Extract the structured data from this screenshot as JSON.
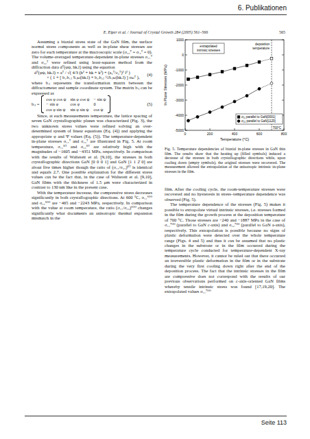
{
  "header": {
    "section": "6. Publikationen",
    "running_head": "E. Eiper et al. / Journal of Crystal Growth 284 (2005) 561–566",
    "page": "565"
  },
  "left_column": [
    {
      "type": "paragraph",
      "text": "Assuming a biaxial stress state of the GaN film, the surface normal stress components as well as in-plane shear stresses are zero for each temperature at the macroscopic scale (σ₃₃ᵀ = σᵢ₃ᵀ = 0). The volume-averaged temperature-dependent in-plane stresses σ₁₁ᵀ and σ₂₂ᵀ were refined using least-squares method from the diffraction data dᵀ(φψ, hk.l) using the equation"
    },
    {
      "type": "equation",
      "lines": [
        "dᵀ(φψ, hk.l) = aᵀ / √( 4/3 (h² + hk + k²) + (a₀ᵀ/c₀ᵀ)² l² )",
        "× ( 1 + [ b₁ᵢb₁ⱼ Sᵢⱼₖₗ(hk.l) + b₂ᵢb₂ⱼ ½Sᵢⱼₖₗ(hk.l) ] σₖₗᵀ ),"
      ],
      "number": "(4)"
    },
    {
      "type": "continuation",
      "text": "where bᵢⱼ represents the transformation matrix between the diffractometer and sample coordinate system. The matrix bᵢⱼ can be expressed as"
    },
    {
      "type": "matrix",
      "lhs": "bᵢⱼ =",
      "rows": [
        [
          "cos φ cos ψ",
          "sin φ cos ψ",
          "− sin ψ"
        ],
        [
          "− sin φ",
          "cos φ",
          "0"
        ],
        [
          "cos φ sin ψ",
          "sin φ sin ψ",
          "cos ψ"
        ]
      ],
      "number": "(5)"
    },
    {
      "type": "paragraph",
      "text": "Since, at each measurements temperature, the lattice spacing of seven GaN crystallographic planes was characterized (Fig. 3), the two unknown stress values were refined solving an over-determined system of linear equations (Eq. (4)) and applying the appropriate φ and Ψ values (Eq. (5)). The temperature-dependent in-plane stresses σ₁₁ᵀ and σ₂₂ᵀ are illustrated in Fig. 5. At room temperature, σ₁₁ᴿᵀ and σ₂₂ᴿᵀ are relatively high with the magnitudes of −1605 and −4351 MPa, respectively. In comparison with the results of Waltereit et al. [9,10], the stresses in both crystallographic directions GaN [0 0 0 1] and GaN [1 1 2̄ 0] are about five times higher though the ratio of (σ₁₁/σ₂₂)ᴿᵀ is identical and equals 2.7. One possible explanation for the different stress values can be the fact that, in the case of Waltereit et al. [9,10], GaN films with the thickness of 1.5 μm were characterized in contrast to 130 nm like in the present case."
    },
    {
      "type": "paragraph",
      "text": "With the temperature increase, the compressive stress decreases significantly in both crystallographic directions. At 600 °C, σ₁₁⁶⁰⁰ and σ₂₂⁶⁰⁰ are −465 and −2243 MPa, respectively. In comparison with the value at room temperature, the ratio (σ₁₁/σ₂₂)⁶⁰⁰ changes significantly what documents an anisotropic thermal expansion mismatch in the"
    }
  ],
  "chart_data": {
    "type": "line",
    "xlabel": "Temperature (°C)",
    "ylabel": "In Plane Stresses (MPa)",
    "xlim": [
      0,
      800
    ],
    "xticks": [
      0,
      200,
      400,
      600,
      800
    ],
    "ylim": [
      -5000,
      1000
    ],
    "yticks": [
      -5000,
      -4000,
      -3000,
      -2000,
      -1000,
      0,
      1000
    ],
    "x": [
      25,
      100,
      200,
      300,
      400,
      500,
      600
    ],
    "series": [
      {
        "name": "σ₁₁ parallel to GaN[0001]",
        "color": "#000000",
        "marker": "square",
        "values": [
          -1605,
          -1480,
          -1300,
          -1120,
          -900,
          -700,
          -465
        ],
        "values_cooling": [
          -1620,
          -1500,
          -1320,
          -1100,
          -920,
          -690,
          -480
        ],
        "extrapolated": {
          "x": 700,
          "value": -240
        }
      },
      {
        "name": "σ₂₂ parallel to GaN[112̄0]",
        "color": "#000000",
        "marker": "circle",
        "values": [
          -4351,
          -4100,
          -3800,
          -3450,
          -3100,
          -2700,
          -2243
        ],
        "values_cooling": [
          -4380,
          -4120,
          -3780,
          -3480,
          -3080,
          -2720,
          -2260
        ],
        "extrapolated": {
          "x": 700,
          "value": -1887
        }
      }
    ],
    "legend": "lower right",
    "vline_x": 700,
    "annotations": {
      "extrapolated": [
        "extrapolated",
        "intrinsic stresses"
      ],
      "deposition": [
        "deposition",
        "temperature"
      ],
      "vline_label": "700°C"
    }
  },
  "caption": {
    "label": "Fig. 5.",
    "text": "Temperature dependencies of biaxial in-plane stresses in GaN thin film. The results show that the heating up (filled symbols) induced a decrease of the stresses in both crystallographic directions while, upon cooling down (empty symbols), the original stresses were recovered. The measurement allowed the extrapolation of the anisotropic intrinsic in-plane stresses in the film."
  },
  "right_column": [
    {
      "type": "continuation",
      "text": "film. After the cooling cycle, the room-temperature stresses were recovered and no hysteresis in stress–temperature dependence was observed (Fig. 5)."
    },
    {
      "type": "paragraph",
      "text": "The temperature dependence of the stresses (Fig. 5) makes it possible to extrapolate virtual intrinsic stresses, i.e. stresses formed in the film during the growth process at the deposition temperature of 700 °C. Those stresses are −240 and −1887 MPa in the case of σ₁₁⁷⁰⁰ (parallel to GaN c-axis) and σ₂₂⁷⁰⁰ (parallel to GaN a-axis), respectively. This extrapolation is possible because no signs of plastic deformation were detected over the whole temperature range (Figs. 4 and 5) and thus it can be assumed that no plastic changes in the substrate or in the film occurred during the temperature cycle conducted for temperature-dependent X-ray measurements. However, it cannot be ruled out that there occurred an irreversible plastic deformation in the film or in the substrate during the very first cooling down right after the end of the deposition process. The fact that the intrinsic stresses in the film are compressive does not correspond with the results of our previous observations performed on c-axis-oriented GaN films whereby tensile intrinsic stress was found [17,19,20]. The extrapolated values σ₁₁⁷⁰⁰"
    }
  ],
  "footer": "Seite 113"
}
